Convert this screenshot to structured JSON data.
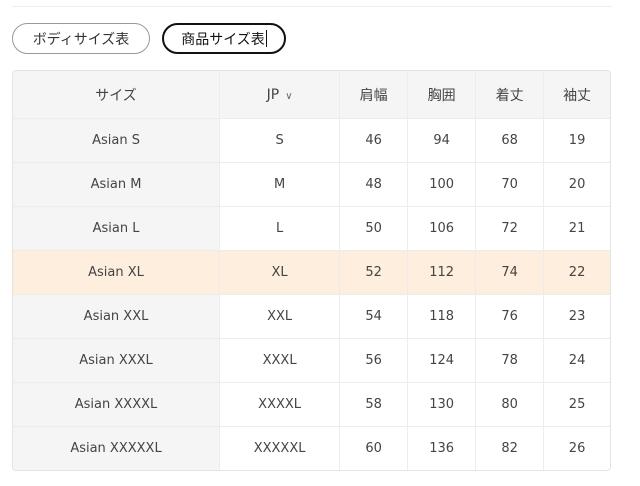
{
  "tabs": [
    {
      "label": "ボディサイズ表",
      "active": false
    },
    {
      "label": "商品サイズ表",
      "active": true
    }
  ],
  "table": {
    "headers": [
      "サイズ",
      "JP",
      "肩幅",
      "胸囲",
      "着丈",
      "袖丈"
    ],
    "unit_selector_icon": "chevron-down-icon",
    "highlight_row": 3,
    "highlight_color": "#fdeedd",
    "rows": [
      [
        "Asian S",
        "S",
        "46",
        "94",
        "68",
        "19"
      ],
      [
        "Asian M",
        "M",
        "48",
        "100",
        "70",
        "20"
      ],
      [
        "Asian L",
        "L",
        "50",
        "106",
        "72",
        "21"
      ],
      [
        "Asian XL",
        "XL",
        "52",
        "112",
        "74",
        "22"
      ],
      [
        "Asian XXL",
        "XXL",
        "54",
        "118",
        "76",
        "23"
      ],
      [
        "Asian XXXL",
        "XXXL",
        "56",
        "124",
        "78",
        "24"
      ],
      [
        "Asian XXXXL",
        "XXXXL",
        "58",
        "130",
        "80",
        "25"
      ],
      [
        "Asian XXXXXL",
        "XXXXXL",
        "60",
        "136",
        "82",
        "26"
      ]
    ]
  }
}
